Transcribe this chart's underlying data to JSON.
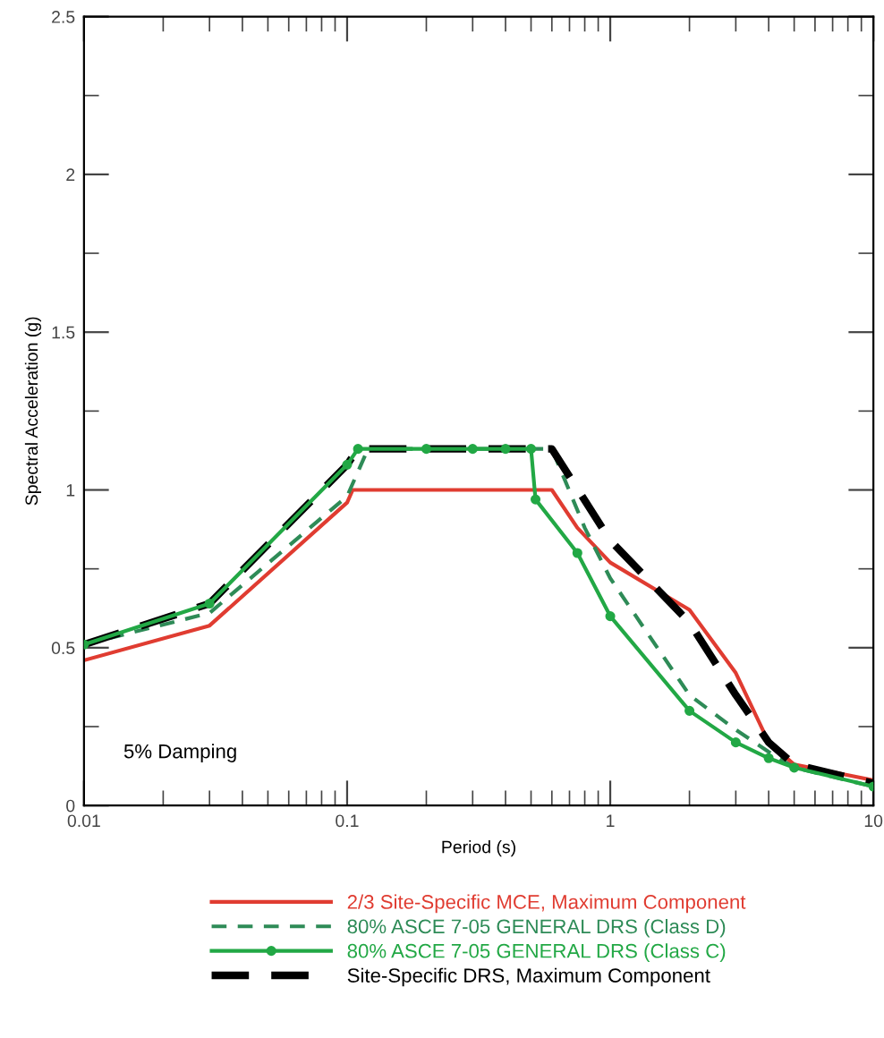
{
  "chart_data": {
    "type": "line",
    "xlabel": "Period (s)",
    "ylabel": "Spectral Acceleration (g)",
    "log": "x",
    "xlim": [
      0.01,
      10
    ],
    "xticks": [
      0.01,
      {
        "value": 0.02,
        "label": null
      },
      {
        "value": 0.03,
        "label": null
      },
      {
        "value": 0.04,
        "label": null
      },
      {
        "value": 0.05,
        "label": null
      },
      {
        "value": 0.06,
        "label": null
      },
      {
        "value": 0.07,
        "label": null
      },
      {
        "value": 0.08,
        "label": null
      },
      {
        "value": 0.09,
        "label": null
      },
      0.1,
      {
        "value": 0.2,
        "label": null
      },
      {
        "value": 0.3,
        "label": null
      },
      {
        "value": 0.4,
        "label": null
      },
      {
        "value": 0.5,
        "label": null
      },
      {
        "value": 0.6,
        "label": null
      },
      {
        "value": 0.7,
        "label": null
      },
      {
        "value": 0.8,
        "label": null
      },
      {
        "value": 0.9,
        "label": null
      },
      1,
      {
        "value": 2,
        "label": null
      },
      {
        "value": 3,
        "label": null
      },
      {
        "value": 4,
        "label": null
      },
      {
        "value": 5,
        "label": null
      },
      {
        "value": 6,
        "label": null
      },
      {
        "value": 7,
        "label": null
      },
      {
        "value": 8,
        "label": null
      },
      {
        "value": 9,
        "label": null
      },
      10
    ],
    "ylim": [
      0,
      2.5
    ],
    "yticks": [
      0,
      {
        "value": 0.25,
        "label": null
      },
      0.5,
      {
        "value": 0.75,
        "label": null
      },
      1,
      {
        "value": 1.25,
        "label": null
      },
      1.5,
      {
        "value": 1.75,
        "label": null
      },
      2,
      {
        "value": 2.25,
        "label": null
      },
      2.5
    ],
    "grid": false,
    "legend": "bottom",
    "annotations": [
      "5% Damping"
    ],
    "series": [
      {
        "name": "2/3 Site-Specific MCE, Maximum Component",
        "color": "#e03c31",
        "line_style": "solid",
        "marker": "none",
        "x": [
          0.01,
          0.03,
          0.1,
          0.105,
          0.6,
          0.75,
          1,
          2,
          3,
          4,
          5,
          10
        ],
        "values": [
          0.46,
          0.57,
          0.96,
          1.0,
          1.0,
          0.88,
          0.77,
          0.62,
          0.42,
          0.2,
          0.13,
          0.08
        ]
      },
      {
        "name": "80% ASCE 7-05 GENERAL DRS (Class D)",
        "color": "#2e8b57",
        "line_style": "dashed",
        "marker": "none",
        "x": [
          0.01,
          0.03,
          0.1,
          0.12,
          0.6,
          0.8,
          1,
          2,
          3,
          4,
          5,
          10
        ],
        "values": [
          0.51,
          0.61,
          0.98,
          1.13,
          1.13,
          0.88,
          0.72,
          0.35,
          0.24,
          0.17,
          0.12,
          0.06
        ]
      },
      {
        "name": "80% ASCE 7-05 GENERAL DRS (Class C)",
        "color": "#22a845",
        "line_style": "solid",
        "marker": "circle",
        "x": [
          0.01,
          0.03,
          0.1,
          0.11,
          0.2,
          0.3,
          0.4,
          0.5,
          0.52,
          0.75,
          1,
          2,
          3,
          4,
          5,
          10
        ],
        "values": [
          0.51,
          0.64,
          1.08,
          1.13,
          1.13,
          1.13,
          1.13,
          1.13,
          0.97,
          0.8,
          0.6,
          0.3,
          0.2,
          0.15,
          0.12,
          0.06
        ]
      },
      {
        "name": "Site-Specific DRS, Maximum Component",
        "color": "#000000",
        "line_style": "dashed",
        "marker": "none",
        "x": [
          0.01,
          0.03,
          0.1,
          0.11,
          0.6,
          1,
          2,
          3,
          4,
          5,
          10
        ],
        "values": [
          0.51,
          0.64,
          1.08,
          1.13,
          1.13,
          0.84,
          0.58,
          0.35,
          0.2,
          0.13,
          0.07
        ]
      }
    ]
  }
}
